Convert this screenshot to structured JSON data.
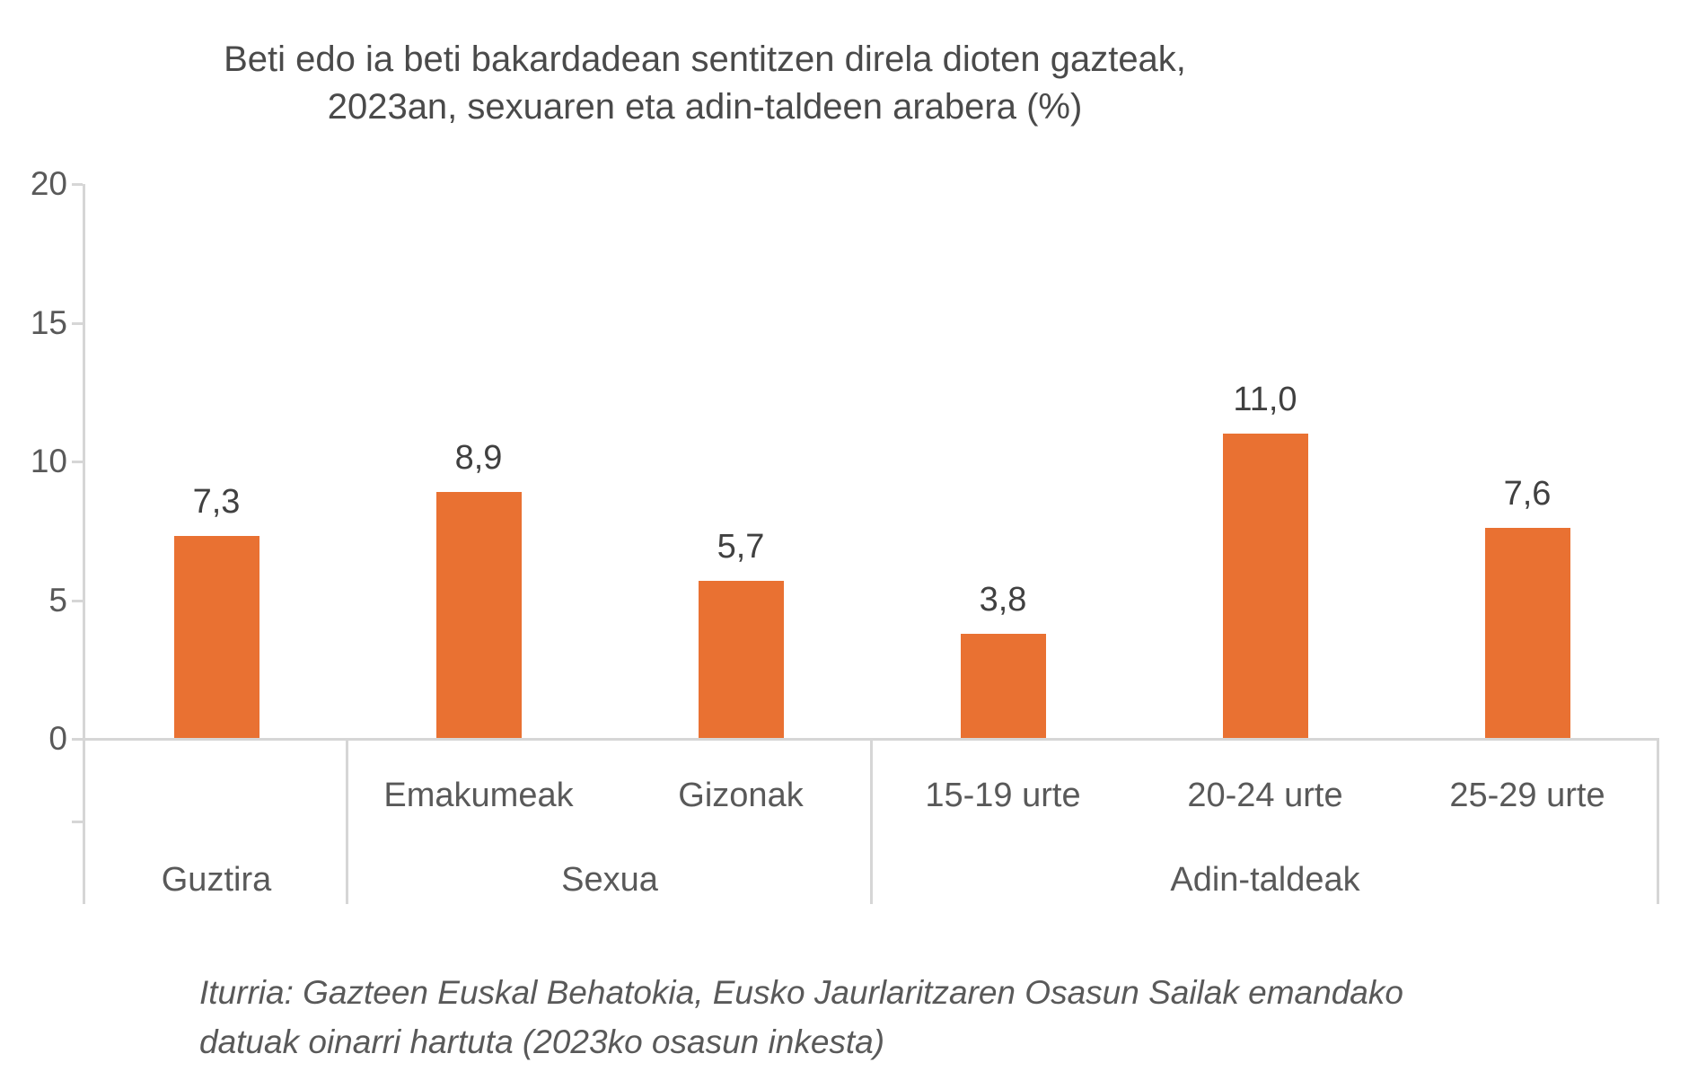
{
  "title": {
    "line1": "Beti edo ia beti bakardadean sentitzen direla dioten gazteak,",
    "line2": "2023an, sexuaren eta adin-taldeen arabera (%)"
  },
  "chart_data": {
    "type": "bar",
    "title": "Beti edo ia beti bakardadean sentitzen direla dioten gazteak, 2023an, sexuaren eta adin-taldeen arabera (%)",
    "categories": [
      "Guztira",
      "Emakumeak",
      "Gizonak",
      "15-19 urte",
      "20-24 urte",
      "25-29 urte"
    ],
    "sub_labels": [
      "",
      "Emakumeak",
      "Gizonak",
      "15-19 urte",
      "20-24 urte",
      "25-29 urte"
    ],
    "groups": [
      {
        "label": "Guztira",
        "cols": 1
      },
      {
        "label": "Sexua",
        "cols": 2
      },
      {
        "label": "Adin-taldeak",
        "cols": 3
      }
    ],
    "values": [
      7.3,
      8.9,
      5.7,
      3.8,
      11.0,
      7.6
    ],
    "value_labels": [
      "7,3",
      "8,9",
      "5,7",
      "3,8",
      "11,0",
      "7,6"
    ],
    "xlabel": "",
    "ylabel": "",
    "ylim": [
      0,
      20
    ],
    "yticks": [
      0,
      5,
      10,
      15,
      20
    ],
    "grid": false,
    "legend": "none",
    "bar_color": "#E97132"
  },
  "source": {
    "line1": "Iturria: Gazteen Euskal Behatokia, Eusko Jaurlaritzaren Osasun Sailak emandako",
    "line2": "datuak oinarri hartuta (2023ko osasun inkesta)"
  },
  "colors": {
    "bar": "#E97132",
    "axis_line": "#D6D6D6",
    "tick_text": "#595959",
    "value_text": "#404040",
    "title_text": "#4A4A4A",
    "source_text": "#595959",
    "background": "#FFFFFF"
  }
}
